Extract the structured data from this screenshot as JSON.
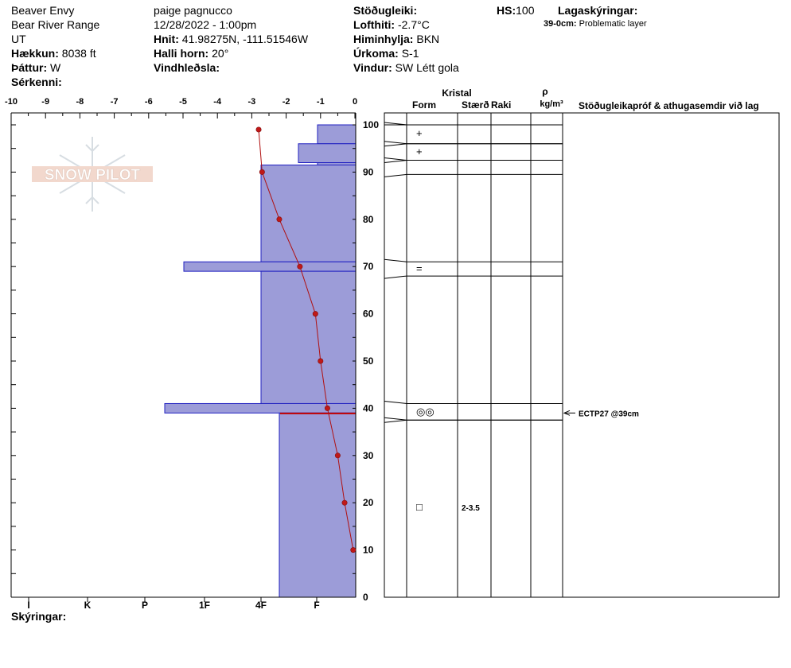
{
  "header": {
    "location": "Beaver Envy",
    "range": "Bear River Range",
    "state": "UT",
    "elevation_label": "Hækkun:",
    "elevation_value": "8038 ft",
    "aspect_label": "Þáttur:",
    "aspect_value": "W",
    "specifics_label": "Sérkenni:",
    "observer": "paige pagnucco",
    "datetime": "12/28/2022 - 1:00pm",
    "coords_label": "Hnit:",
    "coords_value": "41.98275N, -111.51546W",
    "slope_label": "Halli horn:",
    "slope_value": "20°",
    "windload_label": "Vindhleðsla:",
    "stability_label": "Stöðugleiki:",
    "airtemp_label": "Lofthiti:",
    "airtemp_value": "-2.7°C",
    "sky_label": "Himinhylja:",
    "sky_value": "BKN",
    "precip_label": "Úrkoma:",
    "precip_value": "S-1",
    "wind_label": "Vindur:",
    "wind_value": "SW Létt gola",
    "hs_label": "HS:",
    "hs_value": "100",
    "layer_notes_label": "Lagaskýringar:",
    "layer_note_depth": "39-0cm:",
    "layer_note_text": "Problematic layer"
  },
  "footer": {
    "notes_label": "Skýringar:"
  },
  "logo_text": "SNOW PILOT",
  "columns": {
    "crystal": "Kristal",
    "form": "Form",
    "size": "Stærð",
    "moisture": "Raki",
    "rho": "ρ",
    "density_unit": "kg/m³",
    "tests": "Stöðugleikapróf & athugasemdir við lag"
  },
  "chart_data": {
    "type": "snow-profile",
    "temp_axis": {
      "ticks": [
        "-10",
        "-9",
        "-8",
        "-7",
        "-6",
        "-5",
        "-4",
        "-3",
        "-2",
        "-1",
        "0"
      ],
      "range": [
        -10,
        0
      ]
    },
    "hardness_axis": {
      "ticks": [
        "I",
        "K",
        "P",
        "1F",
        "4F",
        "F"
      ]
    },
    "depth_axis": {
      "range": [
        0,
        100
      ],
      "ticks": [
        0,
        10,
        20,
        30,
        40,
        50,
        60,
        70,
        80,
        90,
        100
      ]
    },
    "temperature_profile": [
      {
        "depth": 99,
        "temp": -2.8
      },
      {
        "depth": 90,
        "temp": -2.7
      },
      {
        "depth": 80,
        "temp": -2.2
      },
      {
        "depth": 70,
        "temp": -1.6
      },
      {
        "depth": 60,
        "temp": -1.15
      },
      {
        "depth": 50,
        "temp": -1.0
      },
      {
        "depth": 40,
        "temp": -0.8
      },
      {
        "depth": 30,
        "temp": -0.5
      },
      {
        "depth": 20,
        "temp": -0.3
      },
      {
        "depth": 10,
        "temp": -0.05
      }
    ],
    "layers": [
      {
        "top": 100,
        "bottom": 96,
        "hardness": "F-"
      },
      {
        "top": 96,
        "bottom": 92,
        "hardness": "F+"
      },
      {
        "top": 92,
        "bottom": 91.5,
        "hardness": "F-"
      },
      {
        "top": 91.5,
        "bottom": 71,
        "hardness": "4F"
      },
      {
        "top": 71,
        "bottom": 69,
        "hardness": "P"
      },
      {
        "top": 69,
        "bottom": 41,
        "hardness": "4F"
      },
      {
        "top": 41,
        "bottom": 39,
        "hardness": "P+"
      },
      {
        "top": 39,
        "bottom": 0,
        "hardness": "4F-"
      }
    ],
    "grain_rows": [
      {
        "top": 100,
        "bottom": 96,
        "form": "+"
      },
      {
        "top": 96,
        "bottom": 92.5,
        "form": "+"
      },
      {
        "top": 92.5,
        "bottom": 89.5,
        "form": ""
      },
      {
        "top": 71,
        "bottom": 68,
        "form": "="
      },
      {
        "top": 41,
        "bottom": 37.5,
        "form": "◎◎"
      },
      {
        "top": 37.5,
        "bottom": 0,
        "form": "□",
        "size": "2-3.5"
      }
    ],
    "tests": [
      {
        "depth": 39,
        "result": "ECTP27 @39cm"
      }
    ]
  }
}
